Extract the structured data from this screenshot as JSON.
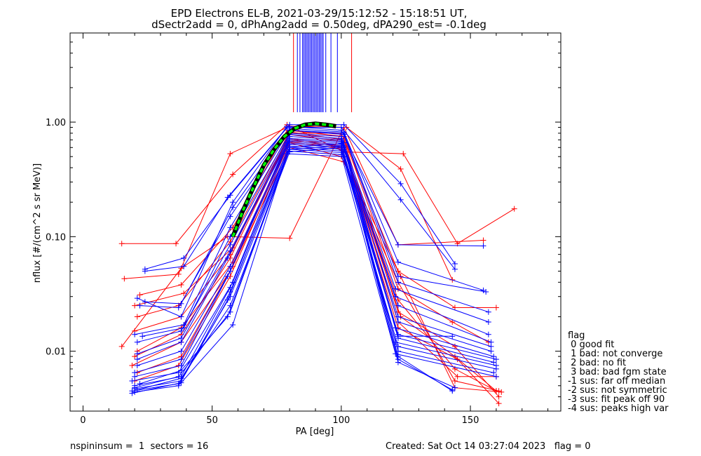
{
  "chart_data": {
    "type": "line",
    "title_line1": "EPD Electrons EL-B, 2021-03-29/15:12:52 - 15:18:51 UT,",
    "title_line2": "dSectr2add = 0, dPhAng2add = 0.50deg, dPA290_est=  -0.1deg",
    "xlabel": "PA [deg]",
    "ylabel": "nflux [#/(cm^2 s sr MeV)]",
    "xlim": [
      -5,
      185
    ],
    "ylim": [
      0.003,
      6
    ],
    "yscale": "log",
    "x_ticks": [
      0,
      50,
      100,
      150
    ],
    "x_tick_labels": [
      "0",
      "50",
      "100",
      "150"
    ],
    "y_ticks": [
      0.01,
      0.1,
      1.0
    ],
    "y_tick_labels": [
      "0.01",
      "0.10",
      "1.00"
    ],
    "colors": {
      "red": "#ff0000",
      "blue": "#0000ff",
      "fit": "#00ff00",
      "fit_outline": "#000000"
    },
    "series_red": [
      {
        "values": [
          [
            15,
            0.087
          ],
          [
            36,
            0.087
          ],
          [
            58,
            0.35
          ],
          [
            79,
            0.95
          ],
          [
            101,
            0.55
          ],
          [
            124,
            0.53
          ],
          [
            145,
            0.087
          ],
          [
            167,
            0.175
          ]
        ]
      },
      {
        "values": [
          [
            16,
            0.043
          ],
          [
            37,
            0.047
          ],
          [
            57,
            0.53
          ],
          [
            80,
            0.92
          ],
          [
            102,
            0.9
          ],
          [
            123,
            0.39
          ],
          [
            143,
            0.042
          ]
        ]
      },
      {
        "values": [
          [
            15,
            0.011
          ],
          [
            38,
            0.053
          ],
          [
            56,
            0.1
          ],
          [
            80,
            0.097
          ],
          [
            101,
            0.9
          ],
          [
            122,
            0.085
          ],
          [
            155,
            0.093
          ]
        ]
      },
      {
        "values": [
          [
            20,
            0.025
          ],
          [
            39,
            0.032
          ],
          [
            58,
            0.08
          ],
          [
            80,
            0.8
          ],
          [
            100,
            0.8
          ],
          [
            122,
            0.05
          ],
          [
            144,
            0.024
          ],
          [
            160,
            0.024
          ]
        ]
      },
      {
        "values": [
          [
            22,
            0.031
          ],
          [
            38,
            0.038
          ],
          [
            58,
            0.12
          ],
          [
            79,
            0.85
          ],
          [
            101,
            0.75
          ],
          [
            122,
            0.035
          ],
          [
            143,
            0.018
          ],
          [
            157,
            0.012
          ]
        ]
      },
      {
        "values": [
          [
            21,
            0.02
          ],
          [
            37,
            0.025
          ],
          [
            57,
            0.09
          ],
          [
            80,
            0.82
          ],
          [
            101,
            0.7
          ],
          [
            122,
            0.022
          ],
          [
            144,
            0.011
          ],
          [
            161,
            0.004
          ]
        ]
      },
      {
        "values": [
          [
            20,
            0.015
          ],
          [
            38,
            0.02
          ],
          [
            57,
            0.07
          ],
          [
            80,
            0.78
          ],
          [
            100,
            0.68
          ],
          [
            123,
            0.02
          ],
          [
            144,
            0.009
          ],
          [
            160,
            0.0045
          ]
        ]
      },
      {
        "values": [
          [
            21,
            0.01
          ],
          [
            38,
            0.016
          ],
          [
            58,
            0.06
          ],
          [
            80,
            0.72
          ],
          [
            100,
            0.62
          ],
          [
            122,
            0.016
          ],
          [
            145,
            0.0085
          ],
          [
            161,
            0.0035
          ]
        ]
      },
      {
        "values": [
          [
            19,
            0.0075
          ],
          [
            38,
            0.012
          ],
          [
            57,
            0.05
          ],
          [
            80,
            0.7
          ],
          [
            101,
            0.6
          ],
          [
            122,
            0.028
          ],
          [
            144,
            0.007
          ],
          [
            160,
            0.0045
          ]
        ]
      },
      {
        "values": [
          [
            20,
            0.0055
          ],
          [
            37,
            0.0075
          ],
          [
            57,
            0.045
          ],
          [
            80,
            0.66
          ],
          [
            100,
            0.5
          ],
          [
            122,
            0.04
          ],
          [
            144,
            0.0055
          ],
          [
            161,
            0.0045
          ]
        ]
      },
      {
        "values": [
          [
            21,
            0.0065
          ],
          [
            38,
            0.009
          ],
          [
            58,
            0.055
          ],
          [
            80,
            0.6
          ],
          [
            101,
            0.45
          ],
          [
            123,
            0.045
          ],
          [
            144,
            0.0048
          ],
          [
            162,
            0.0044
          ]
        ]
      },
      {
        "values": [
          [
            20,
            0.009
          ],
          [
            38,
            0.014
          ],
          [
            57,
            0.065
          ],
          [
            79,
            0.68
          ],
          [
            101,
            0.58
          ],
          [
            122,
            0.018
          ],
          [
            145,
            0.006
          ],
          [
            160,
            0.006
          ]
        ]
      }
    ],
    "series_blue": [
      {
        "values": [
          [
            24,
            0.052
          ],
          [
            39,
            0.065
          ],
          [
            57,
            0.23
          ],
          [
            80,
            0.95
          ],
          [
            101,
            0.95
          ],
          [
            123,
            0.29
          ],
          [
            144,
            0.058
          ]
        ]
      },
      {
        "values": [
          [
            24,
            0.05
          ],
          [
            39,
            0.055
          ],
          [
            56,
            0.22
          ],
          [
            79,
            0.9
          ],
          [
            100,
            0.9
          ],
          [
            123,
            0.21
          ],
          [
            144,
            0.052
          ]
        ]
      },
      {
        "values": [
          [
            21,
            0.029
          ],
          [
            38,
            0.02
          ],
          [
            58,
            0.2
          ],
          [
            79,
            0.92
          ],
          [
            100,
            0.85
          ],
          [
            122,
            0.085
          ],
          [
            155,
            0.083
          ]
        ]
      },
      {
        "values": [
          [
            24,
            0.027
          ],
          [
            38,
            0.026
          ],
          [
            58,
            0.18
          ],
          [
            80,
            0.88
          ],
          [
            101,
            0.82
          ],
          [
            122,
            0.06
          ],
          [
            155,
            0.034
          ]
        ]
      },
      {
        "values": [
          [
            22,
            0.025
          ],
          [
            37,
            0.024
          ],
          [
            57,
            0.15
          ],
          [
            80,
            0.85
          ],
          [
            101,
            0.8
          ],
          [
            122,
            0.045
          ],
          [
            156,
            0.033
          ]
        ]
      },
      {
        "values": [
          [
            20,
            0.014
          ],
          [
            39,
            0.017
          ],
          [
            57,
            0.12
          ],
          [
            80,
            0.85
          ],
          [
            101,
            0.78
          ],
          [
            122,
            0.04
          ],
          [
            157,
            0.022
          ]
        ]
      },
      {
        "values": [
          [
            23,
            0.0135
          ],
          [
            39,
            0.016
          ],
          [
            57,
            0.1
          ],
          [
            80,
            0.8
          ],
          [
            100,
            0.75
          ],
          [
            121,
            0.035
          ],
          [
            157,
            0.018
          ]
        ]
      },
      {
        "values": [
          [
            21,
            0.012
          ],
          [
            38,
            0.015
          ],
          [
            57,
            0.085
          ],
          [
            80,
            0.78
          ],
          [
            100,
            0.72
          ],
          [
            121,
            0.03
          ],
          [
            157,
            0.014
          ]
        ]
      },
      {
        "values": [
          [
            21,
            0.0095
          ],
          [
            38,
            0.013
          ],
          [
            57,
            0.075
          ],
          [
            80,
            0.75
          ],
          [
            100,
            0.7
          ],
          [
            122,
            0.025
          ],
          [
            158,
            0.012
          ]
        ]
      },
      {
        "values": [
          [
            21,
            0.0085
          ],
          [
            38,
            0.012
          ],
          [
            56,
            0.065
          ],
          [
            80,
            0.72
          ],
          [
            100,
            0.68
          ],
          [
            122,
            0.02
          ],
          [
            158,
            0.011
          ]
        ]
      },
      {
        "values": [
          [
            21,
            0.0075
          ],
          [
            38,
            0.01
          ],
          [
            57,
            0.055
          ],
          [
            80,
            0.7
          ],
          [
            101,
            0.66
          ],
          [
            122,
            0.018
          ],
          [
            158,
            0.01
          ]
        ]
      },
      {
        "values": [
          [
            20,
            0.0065
          ],
          [
            38,
            0.0085
          ],
          [
            57,
            0.05
          ],
          [
            80,
            0.68
          ],
          [
            100,
            0.64
          ],
          [
            121,
            0.016
          ],
          [
            159,
            0.009
          ]
        ]
      },
      {
        "values": [
          [
            20,
            0.006
          ],
          [
            38,
            0.0075
          ],
          [
            56,
            0.045
          ],
          [
            79,
            0.66
          ],
          [
            101,
            0.62
          ],
          [
            122,
            0.014
          ],
          [
            160,
            0.0085
          ]
        ]
      },
      {
        "values": [
          [
            19,
            0.0055
          ],
          [
            37,
            0.0065
          ],
          [
            58,
            0.04
          ],
          [
            80,
            0.64
          ],
          [
            101,
            0.6
          ],
          [
            122,
            0.013
          ],
          [
            159,
            0.008
          ]
        ]
      },
      {
        "values": [
          [
            20,
            0.005
          ],
          [
            38,
            0.006
          ],
          [
            57,
            0.036
          ],
          [
            79,
            0.62
          ],
          [
            100,
            0.58
          ],
          [
            121,
            0.012
          ],
          [
            160,
            0.0075
          ]
        ]
      },
      {
        "values": [
          [
            20,
            0.0047
          ],
          [
            38,
            0.0055
          ],
          [
            57,
            0.033
          ],
          [
            80,
            0.6
          ],
          [
            100,
            0.56
          ],
          [
            122,
            0.011
          ],
          [
            160,
            0.007
          ]
        ]
      },
      {
        "values": [
          [
            19,
            0.0045
          ],
          [
            37,
            0.0052
          ],
          [
            57,
            0.03
          ],
          [
            80,
            0.58
          ],
          [
            101,
            0.54
          ],
          [
            122,
            0.01
          ],
          [
            159,
            0.0065
          ]
        ]
      },
      {
        "values": [
          [
            20,
            0.0044
          ],
          [
            37,
            0.005
          ],
          [
            56,
            0.028
          ],
          [
            79,
            0.56
          ],
          [
            100,
            0.52
          ],
          [
            121,
            0.0095
          ],
          [
            160,
            0.006
          ]
        ]
      },
      {
        "values": [
          [
            19,
            0.0043
          ],
          [
            38,
            0.0053
          ],
          [
            58,
            0.017
          ],
          [
            79,
            0.53
          ],
          [
            101,
            0.5
          ],
          [
            122,
            0.0135
          ],
          [
            143,
            0.0135
          ]
        ]
      },
      {
        "values": [
          [
            21,
            0.0046
          ],
          [
            38,
            0.0058
          ],
          [
            57,
            0.025
          ],
          [
            80,
            0.55
          ],
          [
            100,
            0.6
          ],
          [
            122,
            0.009
          ],
          [
            143,
            0.0045
          ]
        ]
      },
      {
        "values": [
          [
            20,
            0.0048
          ],
          [
            37,
            0.006
          ],
          [
            57,
            0.022
          ],
          [
            80,
            0.58
          ],
          [
            101,
            0.62
          ],
          [
            122,
            0.0085
          ],
          [
            143,
            0.0046
          ]
        ]
      },
      {
        "values": [
          [
            22,
            0.0052
          ],
          [
            38,
            0.0068
          ],
          [
            56,
            0.02
          ],
          [
            80,
            0.6
          ],
          [
            100,
            0.65
          ],
          [
            122,
            0.008
          ],
          [
            144,
            0.0048
          ]
        ]
      }
    ],
    "fit": {
      "values": [
        [
          58,
          0.1
        ],
        [
          62,
          0.17
        ],
        [
          66,
          0.27
        ],
        [
          70,
          0.42
        ],
        [
          74,
          0.58
        ],
        [
          78,
          0.75
        ],
        [
          82,
          0.88
        ],
        [
          86,
          0.95
        ],
        [
          90,
          0.97
        ],
        [
          94,
          0.95
        ],
        [
          98,
          0.92
        ]
      ]
    },
    "vlines_red": [
      81.5,
      104
    ],
    "vlines_blue": [
      83,
      84,
      85,
      85.5,
      86,
      86.5,
      87,
      87.5,
      88,
      88.5,
      89,
      89.5,
      90,
      90.5,
      91,
      91.5,
      92,
      92.5,
      93,
      94,
      96,
      98.5
    ]
  },
  "legend": {
    "title": "flag",
    "items": [
      " 0 good fit",
      " 1 bad: not converge",
      " 2 bad: no fit",
      " 3 bad: bad fgm state",
      "-1 sus: far off median",
      "-2 sus: not symmetric",
      "-3 sus: fit peak off 90",
      "-4 sus: peaks high var"
    ]
  },
  "footer": {
    "left": "nspininsum =  1  sectors = 16",
    "right": "Created: Sat Oct 14 03:27:04 2023   flag = 0"
  }
}
